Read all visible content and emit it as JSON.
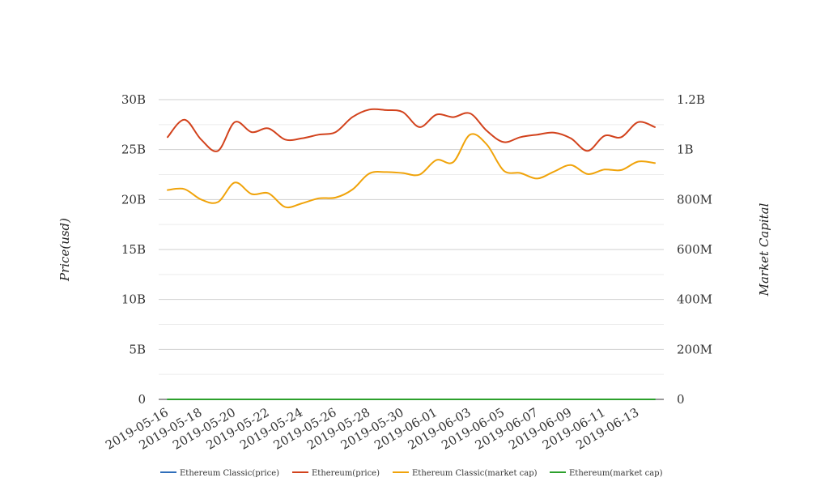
{
  "chart_data": {
    "type": "line",
    "x": [
      "2019-05-16",
      "2019-05-17",
      "2019-05-18",
      "2019-05-19",
      "2019-05-20",
      "2019-05-21",
      "2019-05-22",
      "2019-05-23",
      "2019-05-24",
      "2019-05-25",
      "2019-05-26",
      "2019-05-27",
      "2019-05-28",
      "2019-05-29",
      "2019-05-30",
      "2019-05-31",
      "2019-06-01",
      "2019-06-02",
      "2019-06-03",
      "2019-06-04",
      "2019-06-05",
      "2019-06-06",
      "2019-06-07",
      "2019-06-08",
      "2019-06-09",
      "2019-06-10",
      "2019-06-11",
      "2019-06-12",
      "2019-06-13",
      "2019-06-14"
    ],
    "x_tick_labels": [
      "2019-05-16",
      "2019-05-18",
      "2019-05-20",
      "2019-05-22",
      "2019-05-24",
      "2019-05-26",
      "2019-05-28",
      "2019-05-30",
      "2019-06-01",
      "2019-06-03",
      "2019-06-05",
      "2019-06-07",
      "2019-06-09",
      "2019-06-11",
      "2019-06-13"
    ],
    "ylabel": "Price(usd)",
    "y2label": "Market Capital",
    "ylim": [
      0,
      30000000000
    ],
    "y2lim": [
      0,
      1200000000
    ],
    "y_tick_labels": [
      "0",
      "5B",
      "10B",
      "15B",
      "20B",
      "25B",
      "30B"
    ],
    "y2_tick_labels": [
      "0",
      "200M",
      "400M",
      "600M",
      "800M",
      "1B",
      "1.2B"
    ],
    "grid": true,
    "legend_position": "bottom",
    "series": [
      {
        "name": "Ethereum Classic(price)",
        "axis": "left",
        "color": "#2f6eba",
        "values": [
          0,
          0,
          0,
          0,
          0,
          0,
          0,
          0,
          0,
          0,
          0,
          0,
          0,
          0,
          0,
          0,
          0,
          0,
          0,
          0,
          0,
          0,
          0,
          0,
          0,
          0,
          0,
          0,
          0,
          0
        ]
      },
      {
        "name": "Ethereum(price)",
        "axis": "right",
        "color": "#d2421c",
        "values": [
          1050000000,
          1120000000,
          1040000000,
          995000000,
          1110000000,
          1070000000,
          1085000000,
          1040000000,
          1045000000,
          1060000000,
          1070000000,
          1130000000,
          1160000000,
          1158000000,
          1150000000,
          1090000000,
          1140000000,
          1130000000,
          1145000000,
          1075000000,
          1030000000,
          1050000000,
          1060000000,
          1068000000,
          1045000000,
          995000000,
          1055000000,
          1050000000,
          1110000000,
          1090000000
        ]
      },
      {
        "name": "Ethereum Classic(market cap)",
        "axis": "right",
        "color": "#f0a30a",
        "values": [
          838000000,
          842000000,
          800000000,
          790000000,
          868000000,
          822000000,
          825000000,
          770000000,
          785000000,
          805000000,
          808000000,
          840000000,
          904000000,
          910000000,
          906000000,
          900000000,
          958000000,
          950000000,
          1060000000,
          1020000000,
          916000000,
          906000000,
          884000000,
          912000000,
          938000000,
          902000000,
          920000000,
          918000000,
          952000000,
          946000000
        ]
      },
      {
        "name": "Ethereum(market cap)",
        "axis": "right",
        "color": "#2ca02c",
        "values": [
          0,
          0,
          0,
          0,
          0,
          0,
          0,
          0,
          0,
          0,
          0,
          0,
          0,
          0,
          0,
          0,
          0,
          0,
          0,
          0,
          0,
          0,
          0,
          0,
          0,
          0,
          0,
          0,
          0,
          0
        ]
      }
    ]
  }
}
